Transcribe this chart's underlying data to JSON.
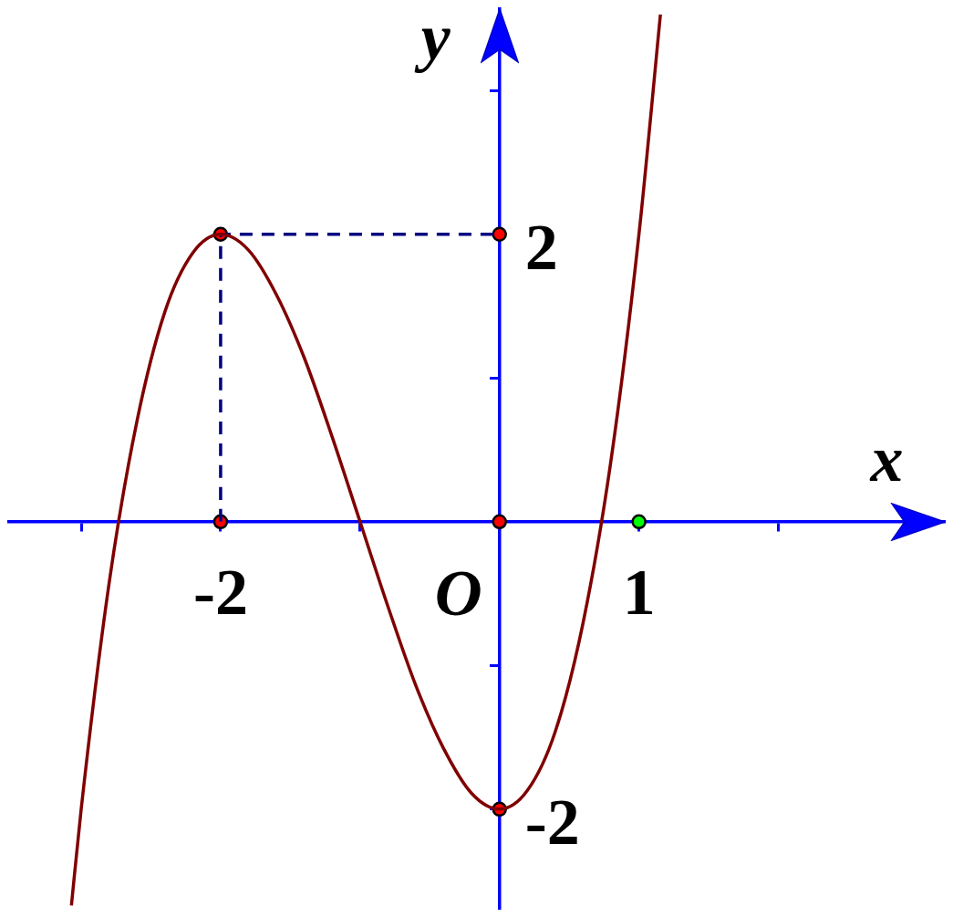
{
  "chart_data": {
    "type": "line",
    "xlabel": "x",
    "ylabel": "y",
    "annotations": [
      {
        "text": "O",
        "x": 0,
        "y": 0
      }
    ],
    "xlim": [
      -3.52,
      3.19
    ],
    "ylim": [
      -2.69,
      3.57
    ],
    "xticks": [
      {
        "value": -3,
        "label": null
      },
      {
        "value": -2,
        "label": "-2"
      },
      {
        "value": -1,
        "label": null
      },
      {
        "value": 1,
        "label": "1"
      },
      {
        "value": 2,
        "label": null
      }
    ],
    "yticks": [
      {
        "value": -2,
        "label": "-2"
      },
      {
        "value": -1,
        "label": null
      },
      {
        "value": 1,
        "label": null
      },
      {
        "value": 2,
        "label": "2"
      },
      {
        "value": 3,
        "label": null
      }
    ],
    "grid": false,
    "legend": false,
    "series": [
      {
        "type": "line",
        "color": "#800000",
        "marker": "none",
        "line_style": "solid",
        "x": [
          -3.07,
          -3,
          -2.8,
          -2.6,
          -2.4,
          -2.2,
          -2,
          -1.8,
          -1.6,
          -1.4,
          -1.2,
          -1,
          -0.8,
          -0.6,
          -0.4,
          -0.2,
          0,
          0.2,
          0.4,
          0.6,
          0.8,
          1,
          1.154
        ],
        "values": [
          -2.67,
          -2,
          -0.43,
          0.7,
          1.46,
          1.87,
          2,
          1.89,
          1.58,
          1.14,
          0.59,
          0,
          -0.59,
          -1.14,
          -1.58,
          -1.89,
          -2,
          -1.87,
          -1.46,
          -0.7,
          0.43,
          2,
          3.53
        ]
      },
      {
        "type": "line",
        "color": "#000080",
        "marker": "none",
        "line_style": "dashed",
        "x": [
          -2,
          -2,
          0
        ],
        "values": [
          0,
          2,
          2
        ]
      },
      {
        "type": "scatter",
        "color": "#ff0000",
        "marker": "circle",
        "x": [
          -2,
          0,
          -2,
          0,
          0
        ],
        "values": [
          2,
          2,
          0,
          0,
          -2
        ]
      },
      {
        "type": "scatter",
        "color": "#00ff00",
        "marker": "circle",
        "x": [
          1
        ],
        "values": [
          0
        ]
      }
    ]
  }
}
